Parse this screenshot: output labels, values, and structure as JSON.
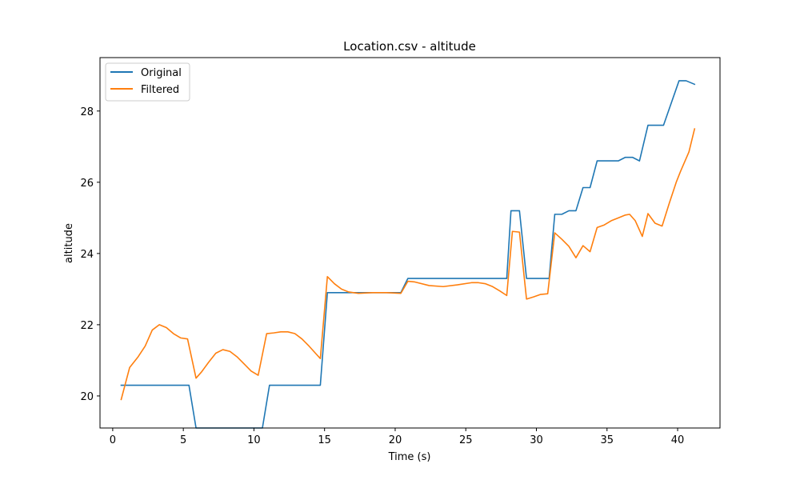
{
  "chart_data": {
    "type": "line",
    "title": "Location.csv - altitude",
    "xlabel": "Time (s)",
    "ylabel": "altitude",
    "xlim": [
      -0.9,
      43.0
    ],
    "ylim": [
      19.1,
      29.5
    ],
    "xticks": [
      0,
      5,
      10,
      15,
      20,
      25,
      30,
      35,
      40
    ],
    "yticks": [
      20,
      22,
      24,
      26,
      28
    ],
    "grid": false,
    "legend_position": "upper-left",
    "series": [
      {
        "name": "Original",
        "color": "#1f77b4",
        "points": [
          [
            0.6,
            20.3
          ],
          [
            5.4,
            20.3
          ],
          [
            5.9,
            19.1
          ],
          [
            10.6,
            19.1
          ],
          [
            11.1,
            20.3
          ],
          [
            14.7,
            20.3
          ],
          [
            15.2,
            22.9
          ],
          [
            20.4,
            22.9
          ],
          [
            20.9,
            23.3
          ],
          [
            27.9,
            23.3
          ],
          [
            28.2,
            25.2
          ],
          [
            28.8,
            25.2
          ],
          [
            29.3,
            23.3
          ],
          [
            30.9,
            23.3
          ],
          [
            31.3,
            25.1
          ],
          [
            31.8,
            25.1
          ],
          [
            32.3,
            25.2
          ],
          [
            32.8,
            25.2
          ],
          [
            33.3,
            25.85
          ],
          [
            33.8,
            25.85
          ],
          [
            34.3,
            26.6
          ],
          [
            35.8,
            26.6
          ],
          [
            36.3,
            26.7
          ],
          [
            36.8,
            26.7
          ],
          [
            37.3,
            26.6
          ],
          [
            37.9,
            27.6
          ],
          [
            39.0,
            27.6
          ],
          [
            40.1,
            28.85
          ],
          [
            40.6,
            28.85
          ],
          [
            41.2,
            28.75
          ]
        ]
      },
      {
        "name": "Filtered",
        "color": "#ff7f0e",
        "points": [
          [
            0.6,
            19.9
          ],
          [
            1.2,
            20.8
          ],
          [
            1.8,
            21.1
          ],
          [
            2.3,
            21.4
          ],
          [
            2.8,
            21.85
          ],
          [
            3.3,
            22.0
          ],
          [
            3.8,
            21.92
          ],
          [
            4.3,
            21.75
          ],
          [
            4.8,
            21.63
          ],
          [
            5.3,
            21.6
          ],
          [
            5.9,
            20.5
          ],
          [
            6.3,
            20.68
          ],
          [
            6.8,
            20.95
          ],
          [
            7.3,
            21.2
          ],
          [
            7.8,
            21.3
          ],
          [
            8.3,
            21.25
          ],
          [
            8.8,
            21.1
          ],
          [
            9.3,
            20.9
          ],
          [
            9.8,
            20.7
          ],
          [
            10.3,
            20.58
          ],
          [
            10.9,
            21.75
          ],
          [
            11.4,
            21.77
          ],
          [
            11.9,
            21.8
          ],
          [
            12.4,
            21.8
          ],
          [
            12.9,
            21.75
          ],
          [
            13.4,
            21.6
          ],
          [
            13.9,
            21.4
          ],
          [
            14.4,
            21.18
          ],
          [
            14.7,
            21.05
          ],
          [
            15.2,
            23.35
          ],
          [
            15.7,
            23.15
          ],
          [
            16.2,
            23.0
          ],
          [
            16.7,
            22.92
          ],
          [
            17.4,
            22.88
          ],
          [
            18.4,
            22.9
          ],
          [
            19.4,
            22.9
          ],
          [
            20.4,
            22.88
          ],
          [
            20.9,
            23.22
          ],
          [
            21.4,
            23.2
          ],
          [
            22.4,
            23.1
          ],
          [
            23.4,
            23.07
          ],
          [
            24.4,
            23.12
          ],
          [
            25.4,
            23.18
          ],
          [
            25.9,
            23.18
          ],
          [
            26.4,
            23.15
          ],
          [
            26.9,
            23.07
          ],
          [
            27.4,
            22.95
          ],
          [
            27.9,
            22.82
          ],
          [
            28.3,
            24.62
          ],
          [
            28.8,
            24.6
          ],
          [
            29.3,
            22.72
          ],
          [
            29.8,
            22.78
          ],
          [
            30.3,
            22.85
          ],
          [
            30.8,
            22.87
          ],
          [
            31.3,
            24.58
          ],
          [
            31.8,
            24.4
          ],
          [
            32.3,
            24.2
          ],
          [
            32.8,
            23.88
          ],
          [
            33.3,
            24.22
          ],
          [
            33.8,
            24.05
          ],
          [
            34.3,
            24.73
          ],
          [
            34.8,
            24.8
          ],
          [
            35.3,
            24.92
          ],
          [
            35.8,
            25.0
          ],
          [
            36.3,
            25.08
          ],
          [
            36.6,
            25.1
          ],
          [
            37.0,
            24.92
          ],
          [
            37.5,
            24.48
          ],
          [
            37.9,
            25.12
          ],
          [
            38.4,
            24.85
          ],
          [
            38.9,
            24.77
          ],
          [
            39.4,
            25.4
          ],
          [
            39.9,
            26.0
          ],
          [
            40.2,
            26.3
          ],
          [
            40.8,
            26.85
          ],
          [
            41.2,
            27.5
          ]
        ]
      }
    ]
  }
}
